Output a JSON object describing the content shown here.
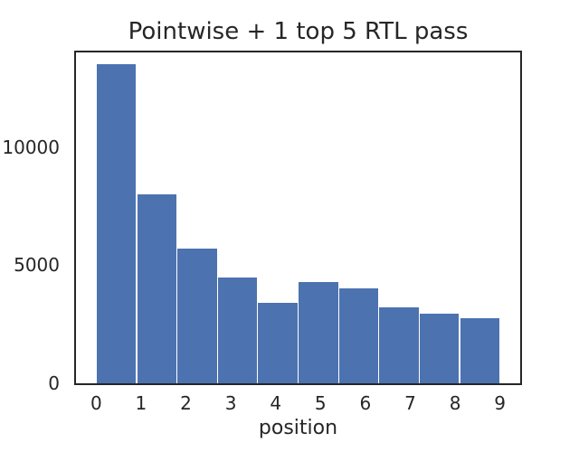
{
  "chart_data": {
    "type": "bar",
    "kind_hint": "histogram",
    "title": "Pointwise + 1 top 5 RTL pass",
    "xlabel": "position",
    "ylabel": "",
    "categories": [
      "0",
      "1",
      "2",
      "3",
      "4",
      "5",
      "6",
      "7",
      "8",
      "9"
    ],
    "values": [
      13500,
      8000,
      5700,
      4480,
      3400,
      4270,
      4000,
      3200,
      2960,
      2760
    ],
    "y_ticks": [
      0,
      5000,
      10000
    ],
    "ylim": [
      0,
      14000
    ],
    "xlim": [
      -0.45,
      9.45
    ],
    "bin_range": [
      0,
      9
    ],
    "grid": false,
    "legend": "none",
    "colors": {
      "bar": "#4C72B0",
      "bar_gap": "#ffffff",
      "axis": "#262626",
      "text": "#262626",
      "background": "#ffffff"
    }
  }
}
